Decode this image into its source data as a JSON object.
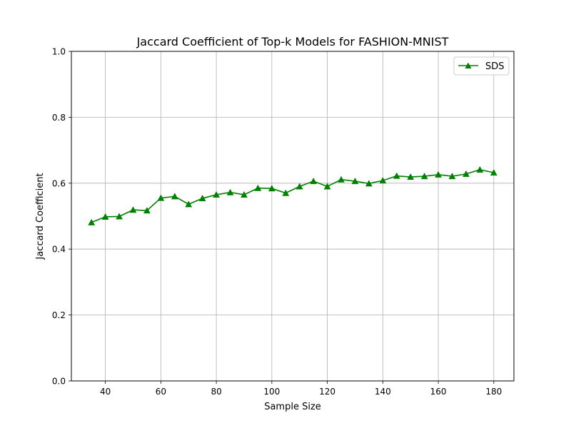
{
  "chart_data": {
    "type": "line",
    "title": "Jaccard Coefficient of Top-k Models for FASHION-MNIST",
    "xlabel": "Sample Size",
    "ylabel": "Jaccard Coefficient",
    "xlim": [
      27.75,
      187.25
    ],
    "ylim": [
      0.0,
      1.0
    ],
    "xticks": [
      40,
      60,
      80,
      100,
      120,
      140,
      160,
      180
    ],
    "yticks": [
      0.0,
      0.2,
      0.4,
      0.6,
      0.8,
      1.0
    ],
    "xtick_labels": [
      "40",
      "60",
      "80",
      "100",
      "120",
      "140",
      "160",
      "180"
    ],
    "ytick_labels": [
      "0.0",
      "0.2",
      "0.4",
      "0.6",
      "0.8",
      "1.0"
    ],
    "grid": true,
    "legend_position": "top-right",
    "series": [
      {
        "name": "SDS",
        "color": "#008000",
        "marker": "triangle-up",
        "x": [
          35,
          40,
          45,
          50,
          55,
          60,
          65,
          70,
          75,
          80,
          85,
          90,
          95,
          100,
          105,
          110,
          115,
          120,
          125,
          130,
          135,
          140,
          145,
          150,
          155,
          160,
          165,
          170,
          175,
          180
        ],
        "y": [
          0.481,
          0.498,
          0.499,
          0.519,
          0.517,
          0.555,
          0.56,
          0.536,
          0.554,
          0.565,
          0.572,
          0.565,
          0.585,
          0.584,
          0.57,
          0.59,
          0.606,
          0.59,
          0.611,
          0.606,
          0.599,
          0.608,
          0.622,
          0.619,
          0.621,
          0.626,
          0.621,
          0.628,
          0.641,
          0.632
        ]
      }
    ]
  }
}
